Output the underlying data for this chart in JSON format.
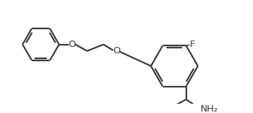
{
  "background": "#ffffff",
  "line_color": "#3a3a3a",
  "line_width": 1.6,
  "figsize": [
    3.57,
    1.59
  ],
  "dpi": 100,
  "label_F": "F",
  "label_O1": "O",
  "label_O2": "O",
  "label_NH2": "NH₂",
  "font_size_atoms": 9.5,
  "font_size_sub": 8
}
